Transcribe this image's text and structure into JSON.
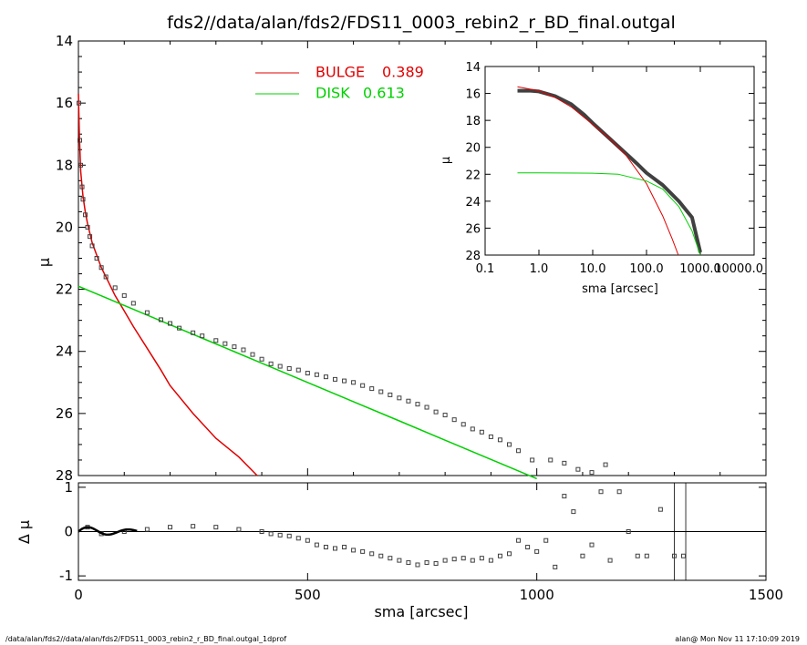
{
  "chart_data": [
    {
      "type": "scatter",
      "title": "fds2//data/alan/fds2/FDS11_0003_rebin2_r_BD_final.outgal",
      "xlabel": "sma [arcsec]",
      "ylabel": "μ",
      "xlim": [
        0,
        1500
      ],
      "ylim": [
        28,
        14
      ],
      "x_ticks": [
        "0",
        "500",
        "1000",
        "1500"
      ],
      "y_ticks": [
        "14",
        "16",
        "18",
        "20",
        "22",
        "24",
        "26",
        "28"
      ],
      "legend": [
        {
          "label": "BULGE",
          "value": "0.389",
          "color": "#e00000"
        },
        {
          "label": "DISK",
          "value": "0.613",
          "color": "#00d000"
        }
      ],
      "series": [
        {
          "name": "BULGE",
          "type": "line",
          "color": "#e00000",
          "x": [
            0,
            2,
            5,
            10,
            15,
            20,
            30,
            40,
            50,
            60,
            70,
            80,
            100,
            120,
            150,
            180,
            200,
            250,
            300,
            350,
            390
          ],
          "y": [
            15.7,
            17.0,
            18.2,
            19.0,
            19.5,
            19.9,
            20.5,
            20.9,
            21.3,
            21.6,
            21.9,
            22.2,
            22.7,
            23.2,
            23.9,
            24.6,
            25.1,
            26.0,
            26.8,
            27.4,
            28.0
          ]
        },
        {
          "name": "DISK",
          "type": "line",
          "color": "#00d000",
          "x": [
            0,
            100,
            200,
            300,
            400,
            500,
            600,
            700,
            800,
            900,
            1000
          ],
          "y": [
            21.9,
            22.52,
            23.14,
            23.76,
            24.38,
            25.0,
            25.62,
            26.24,
            26.86,
            27.48,
            28.1
          ]
        },
        {
          "name": "data",
          "type": "scatter",
          "color": "#404040",
          "x": [
            1,
            3,
            5,
            8,
            10,
            15,
            20,
            25,
            30,
            40,
            50,
            60,
            80,
            100,
            120,
            150,
            180,
            200,
            220,
            250,
            270,
            300,
            320,
            340,
            360,
            380,
            400,
            420,
            440,
            460,
            480,
            500,
            520,
            540,
            560,
            580,
            600,
            620,
            640,
            660,
            680,
            700,
            720,
            740,
            760,
            780,
            800,
            820,
            840,
            860,
            880,
            900,
            920,
            940,
            960,
            990,
            1030,
            1060,
            1090,
            1120,
            1150
          ],
          "y": [
            16.0,
            17.2,
            18.0,
            18.7,
            19.1,
            19.6,
            20.0,
            20.3,
            20.6,
            21.0,
            21.3,
            21.6,
            21.95,
            22.2,
            22.45,
            22.75,
            22.98,
            23.1,
            23.25,
            23.4,
            23.5,
            23.65,
            23.75,
            23.85,
            23.95,
            24.1,
            24.25,
            24.4,
            24.48,
            24.55,
            24.6,
            24.7,
            24.75,
            24.82,
            24.9,
            24.95,
            25.0,
            25.1,
            25.2,
            25.3,
            25.4,
            25.5,
            25.6,
            25.7,
            25.8,
            25.95,
            26.05,
            26.2,
            26.35,
            26.5,
            26.6,
            26.75,
            26.85,
            27.0,
            27.2,
            27.5,
            27.5,
            27.6,
            27.8,
            27.9,
            27.65
          ]
        }
      ]
    },
    {
      "type": "scatter",
      "xlabel": "",
      "ylabel": "Δ μ",
      "xlim": [
        0,
        1500
      ],
      "ylim": [
        -1.1,
        1.1
      ],
      "y_ticks": [
        "1",
        "0",
        "-1"
      ],
      "zero_line": true,
      "series": [
        {
          "name": "residuals",
          "type": "scatter",
          "color": "#404040",
          "x": [
            20,
            50,
            100,
            150,
            200,
            250,
            300,
            350,
            400,
            420,
            440,
            460,
            480,
            500,
            520,
            540,
            560,
            580,
            600,
            620,
            640,
            660,
            680,
            700,
            720,
            740,
            760,
            780,
            800,
            820,
            840,
            860,
            880,
            900,
            920,
            940,
            960,
            980,
            1000,
            1020,
            1040,
            1060,
            1080,
            1100,
            1120,
            1140,
            1160,
            1180,
            1200,
            1220,
            1240,
            1270,
            1300,
            1320
          ],
          "y": [
            0.1,
            -0.05,
            0.0,
            0.05,
            0.1,
            0.12,
            0.1,
            0.05,
            0.0,
            -0.05,
            -0.08,
            -0.1,
            -0.15,
            -0.2,
            -0.3,
            -0.35,
            -0.38,
            -0.35,
            -0.42,
            -0.45,
            -0.5,
            -0.55,
            -0.6,
            -0.65,
            -0.7,
            -0.75,
            -0.7,
            -0.72,
            -0.65,
            -0.62,
            -0.6,
            -0.65,
            -0.6,
            -0.65,
            -0.55,
            -0.5,
            -0.2,
            -0.35,
            -0.45,
            -0.2,
            -0.8,
            0.8,
            0.45,
            -0.55,
            -0.3,
            0.9,
            -0.65,
            0.9,
            0.0,
            -0.55,
            -0.55,
            0.5,
            -0.55,
            -0.55
          ]
        }
      ]
    },
    {
      "type": "line",
      "xlabel": "sma [arcsec]",
      "ylabel": "μ",
      "x_scale": "log",
      "xlim": [
        0.1,
        10000
      ],
      "ylim": [
        28,
        14
      ],
      "x_ticks": [
        "0.1",
        "1.0",
        "10.0",
        "100.0",
        "1000.0",
        "10000.0"
      ],
      "y_ticks": [
        "14",
        "16",
        "18",
        "20",
        "22",
        "24",
        "26",
        "28"
      ],
      "series": [
        {
          "name": "data",
          "type": "line",
          "color": "#404040",
          "x": [
            0.4,
            0.7,
            1,
            2,
            4,
            7,
            10,
            20,
            40,
            70,
            100,
            200,
            400,
            700,
            1000
          ],
          "y": [
            15.8,
            15.8,
            15.85,
            16.2,
            16.8,
            17.6,
            18.2,
            19.3,
            20.4,
            21.3,
            21.9,
            22.8,
            24.0,
            25.2,
            27.8
          ]
        },
        {
          "name": "BULGE",
          "type": "line",
          "color": "#e00000",
          "x": [
            0.4,
            1,
            2,
            4,
            10,
            20,
            40,
            100,
            200,
            300,
            390
          ],
          "y": [
            15.5,
            15.8,
            16.3,
            17.0,
            18.3,
            19.3,
            20.5,
            22.7,
            25.1,
            26.8,
            28.0
          ]
        },
        {
          "name": "DISK",
          "type": "line",
          "color": "#00d000",
          "x": [
            0.4,
            1,
            10,
            30,
            100,
            200,
            400,
            700,
            1000
          ],
          "y": [
            21.9,
            21.9,
            21.92,
            22.0,
            22.5,
            23.1,
            24.4,
            26.2,
            28.0
          ]
        }
      ]
    }
  ],
  "footer": {
    "left": "/data/alan/fds2//data/alan/fds2/FDS11_0003_rebin2_r_BD_final.outgal_1dprof",
    "right": "alan@  Mon Nov 11 17:10:09 2019"
  }
}
